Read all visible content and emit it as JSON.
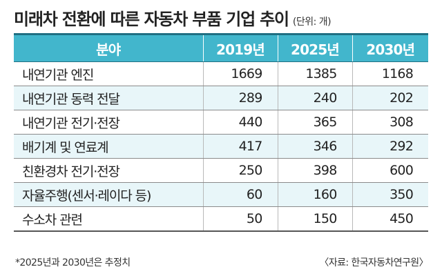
{
  "header": {
    "title": "미래차 전환에 따른 자동차 부품 기업 추이",
    "unit": "(단위: 개)"
  },
  "table": {
    "columns": [
      "분야",
      "2019년",
      "2025년",
      "2030년"
    ],
    "rows": [
      {
        "category": "내연기관 엔진",
        "y2019": "1669",
        "y2025": "1385",
        "y2030": "1168"
      },
      {
        "category": "내연기관 동력 전달",
        "y2019": "289",
        "y2025": "240",
        "y2030": "202"
      },
      {
        "category": "내연기관 전기·전장",
        "y2019": "440",
        "y2025": "365",
        "y2030": "308"
      },
      {
        "category": "배기계 및 연료계",
        "y2019": "417",
        "y2025": "346",
        "y2030": "292"
      },
      {
        "category": "친환경차 전기·전장",
        "y2019": "250",
        "y2025": "398",
        "y2030": "600"
      },
      {
        "category": "자율주행(센서·레이다 등)",
        "y2019": "60",
        "y2025": "160",
        "y2030": "350"
      },
      {
        "category": "수소차 관련",
        "y2019": "50",
        "y2025": "150",
        "y2030": "450"
      }
    ]
  },
  "footer": {
    "note": "*2025년과 2030년은 추정치",
    "source": "〈자료: 한국자동차연구원〉"
  },
  "colors": {
    "header_bg": "#42b6cc",
    "header_text": "#ffffff",
    "alt_row_bg": "#e8f6f9"
  }
}
